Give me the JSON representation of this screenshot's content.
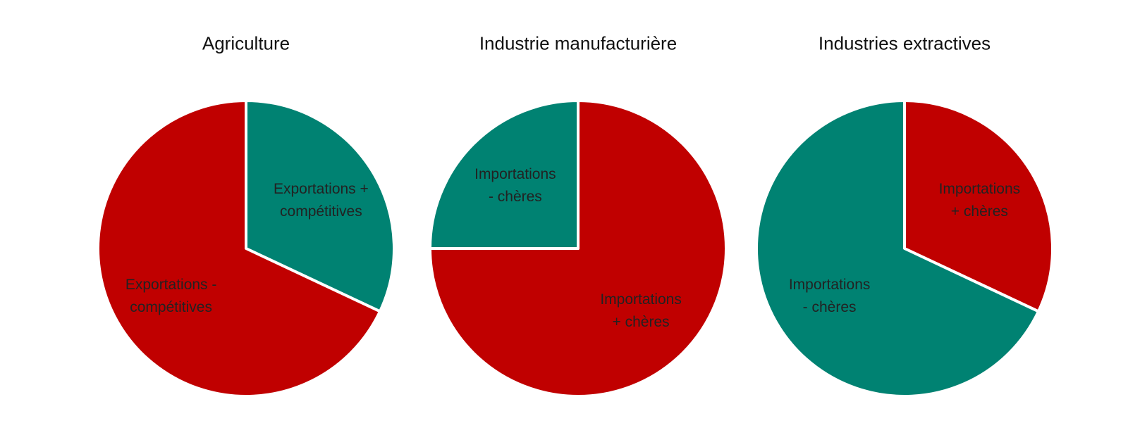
{
  "chart_data": [
    {
      "type": "pie",
      "title": "Agriculture",
      "categories": [
        "Exportations +\ncompétitives",
        "Exportations -\ncompétitives"
      ],
      "values": [
        32,
        68
      ],
      "colors": [
        "#008272",
        "#c00000"
      ]
    },
    {
      "type": "pie",
      "title": "Industrie manufacturière",
      "categories": [
        "Importations\n+ chères",
        "Importations\n- chères"
      ],
      "values": [
        75,
        25
      ],
      "colors": [
        "#c00000",
        "#008272"
      ]
    },
    {
      "type": "pie",
      "title": "Industries extractives",
      "categories": [
        "Importations\n+ chères",
        "Importations\n- chères"
      ],
      "values": [
        32,
        68
      ],
      "colors": [
        "#c00000",
        "#008272"
      ]
    }
  ]
}
